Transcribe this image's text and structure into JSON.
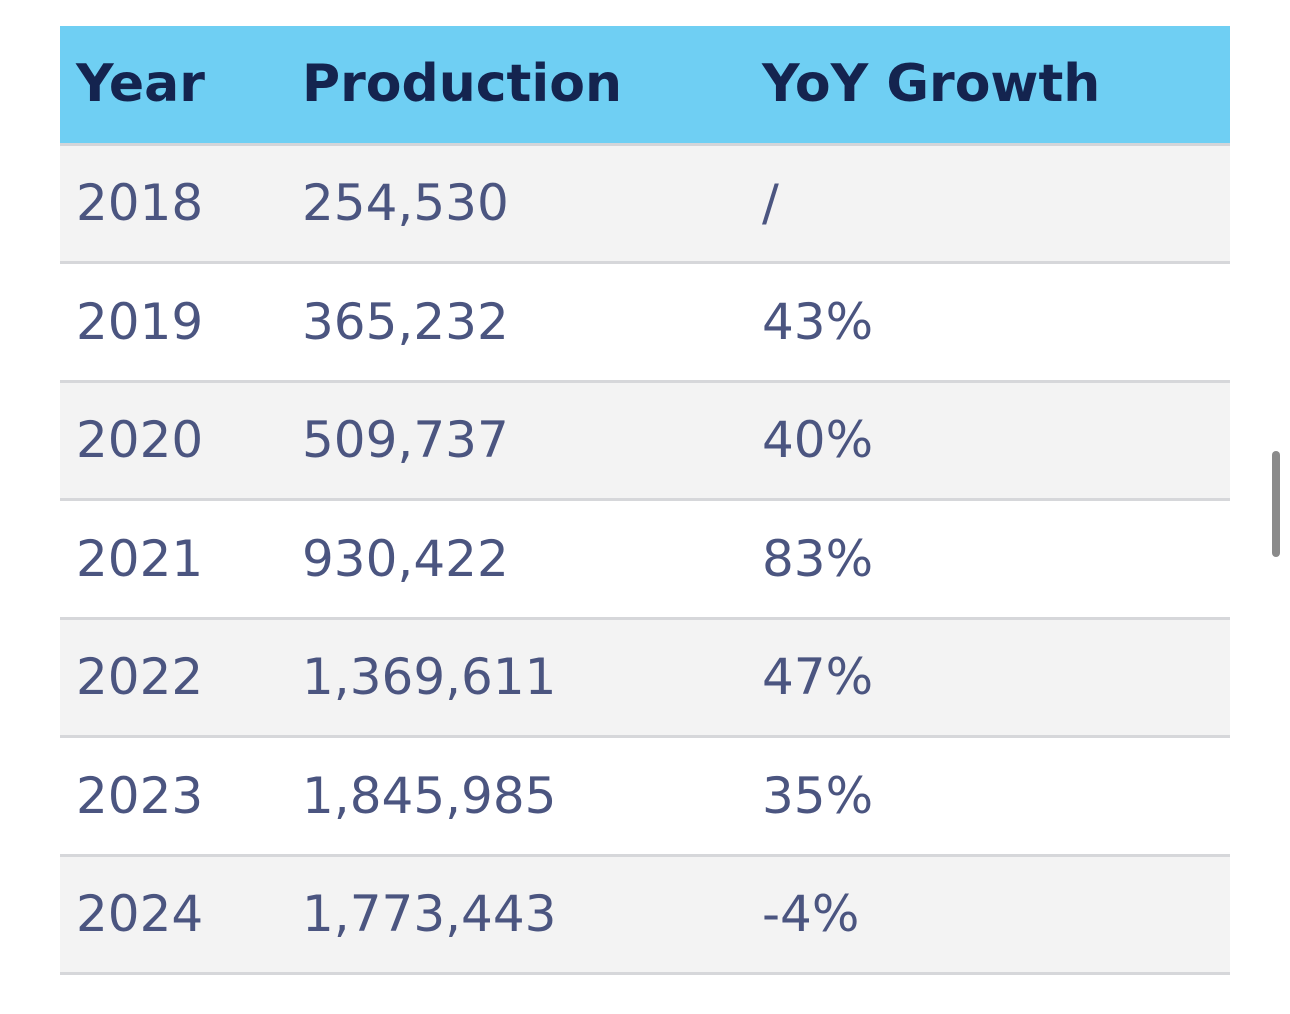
{
  "table": {
    "headers": [
      "Year",
      "Production",
      "YoY Growth"
    ],
    "rows": [
      {
        "year": "2018",
        "production": "254,530",
        "yoy": "/"
      },
      {
        "year": "2019",
        "production": "365,232",
        "yoy": "43%"
      },
      {
        "year": "2020",
        "production": "509,737",
        "yoy": "40%"
      },
      {
        "year": "2021",
        "production": "930,422",
        "yoy": "83%"
      },
      {
        "year": "2022",
        "production": "1,369,611",
        "yoy": "47%"
      },
      {
        "year": "2023",
        "production": "1,845,985",
        "yoy": "35%"
      },
      {
        "year": "2024",
        "production": "1,773,443",
        "yoy": "-4%"
      }
    ]
  },
  "colors": {
    "header_bg": "#6fcff3",
    "header_text": "#14244f",
    "body_text": "#4b5580",
    "row_alt_bg": "#f3f3f3"
  }
}
